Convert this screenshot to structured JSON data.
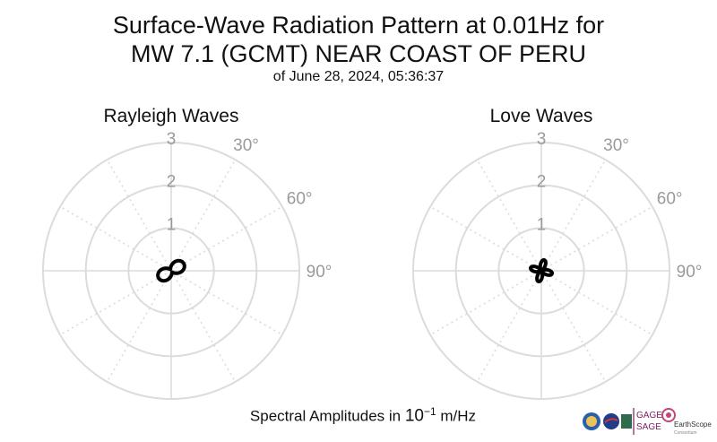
{
  "header": {
    "title_line1": "Surface-Wave Radiation Pattern at 0.01Hz for",
    "title_line2": "MW 7.1 (GCMT) NEAR COAST OF PERU",
    "subtitle": "of June 28, 2024, 05:36:37"
  },
  "footer": {
    "label_prefix": "Spectral Amplitudes in ",
    "label_power_base": "10",
    "label_power_exp": "−1",
    "label_unit": " m/Hz"
  },
  "logos": {
    "gage": "GAGE",
    "sage": "SAGE",
    "earthscope": "EarthScope",
    "consortium": "Consortium"
  },
  "colors": {
    "grid": "#dcdcdc",
    "tick_label": "#9a9a9a",
    "pattern": "#000000"
  },
  "chart_data": [
    {
      "type": "polar-line",
      "title": "Rayleigh Waves",
      "r_ticks": [
        "1",
        "2",
        "3"
      ],
      "r_range": [
        0,
        3
      ],
      "theta_ticks": [
        "30°",
        "60°",
        "90°"
      ],
      "theta_direction": "clockwise",
      "theta_zero": "north",
      "pattern": {
        "lobes": 2,
        "max_amplitude": 0.34,
        "min_amplitude": 0.04,
        "max_azimuth_deg": 60
      }
    },
    {
      "type": "polar-line",
      "title": "Love Waves",
      "r_ticks": [
        "1",
        "2",
        "3"
      ],
      "r_range": [
        0,
        3
      ],
      "theta_ticks": [
        "30°",
        "60°",
        "90°"
      ],
      "theta_direction": "clockwise",
      "theta_zero": "north",
      "pattern": {
        "lobes": 4,
        "max_amplitude": 0.26,
        "min_amplitude": 0.04,
        "max_azimuth_deg": 15
      }
    }
  ]
}
